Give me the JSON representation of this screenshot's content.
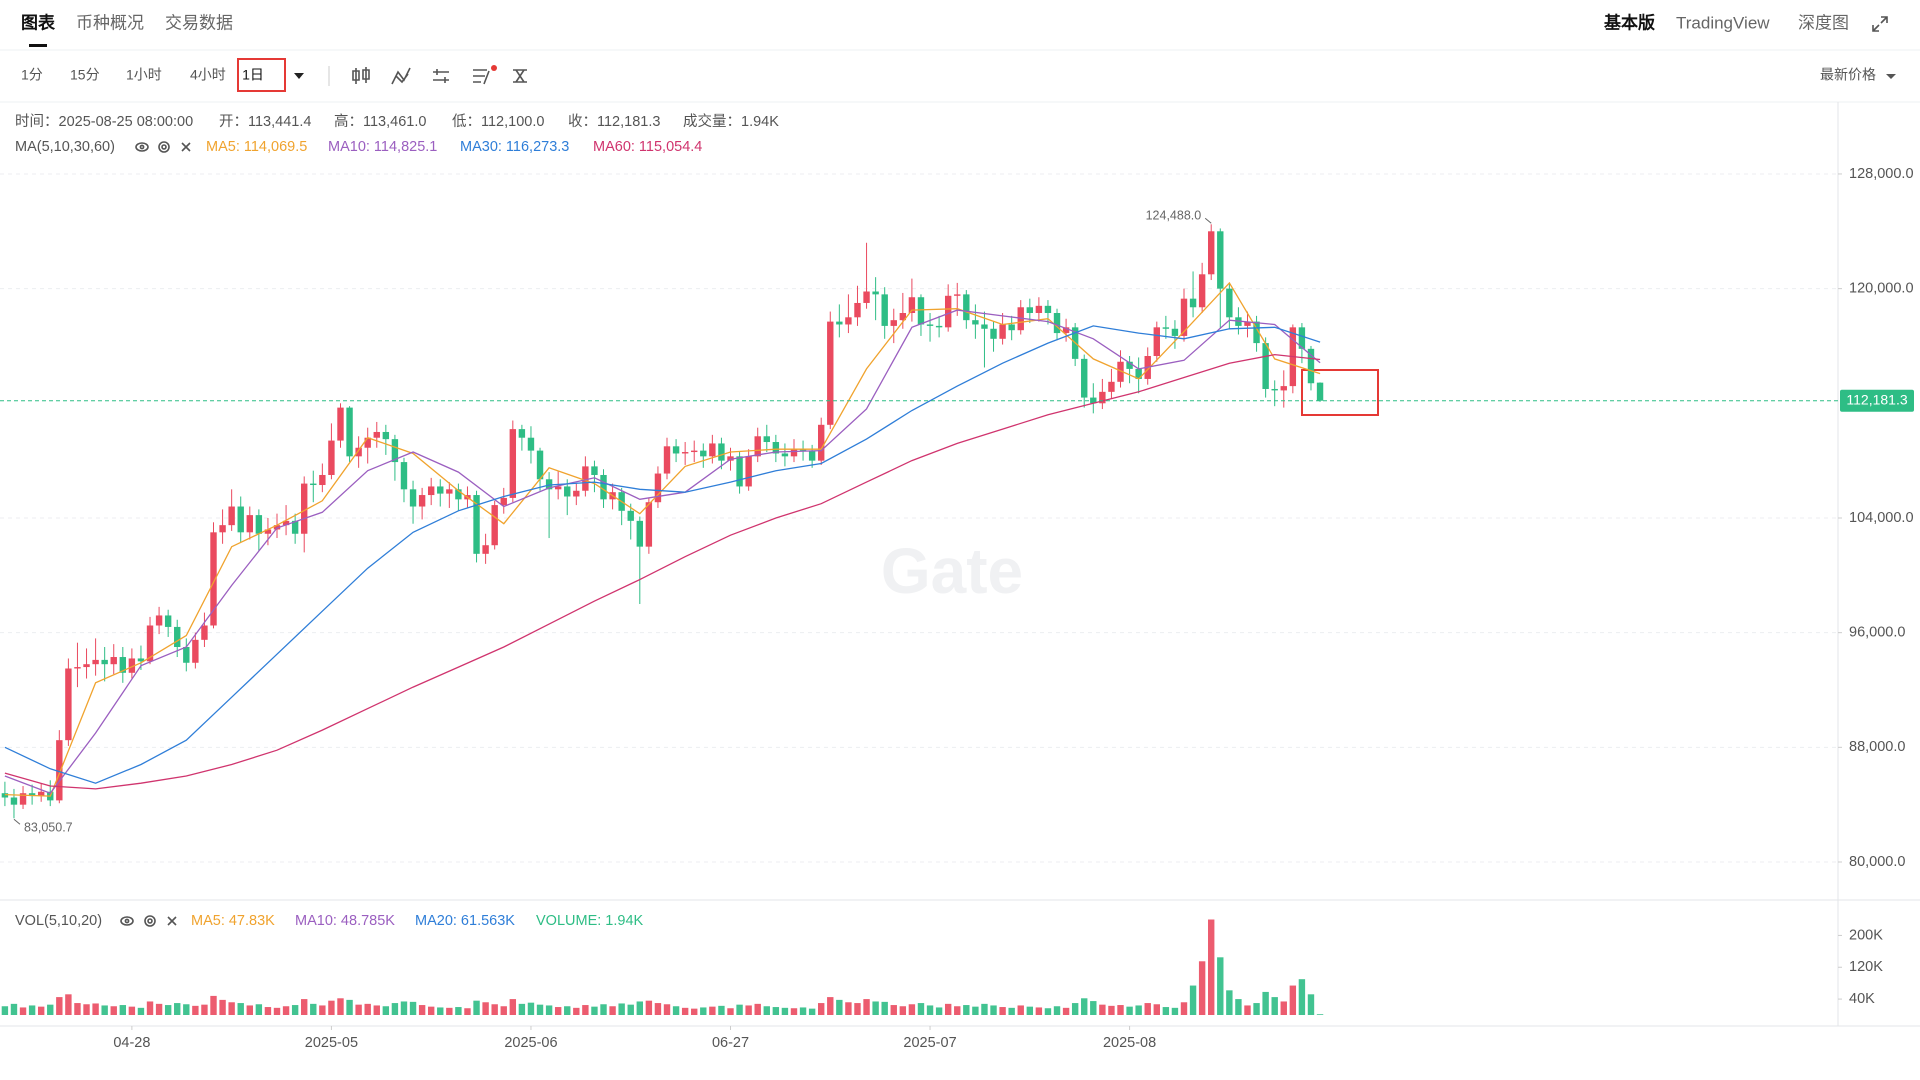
{
  "ui": {
    "tabs": [
      "图表",
      "币种概况",
      "交易数据"
    ],
    "views": [
      "基本版",
      "TradingView",
      "深度图"
    ],
    "intervals": [
      "1分",
      "15分",
      "1小时",
      "4小时",
      "1日"
    ],
    "price_mode": "最新价格"
  },
  "chart_data": {
    "type": "candlestick",
    "info": [
      "时间：2025-08-25 08:00:00",
      "开：113,441.4",
      "高：113,461.0",
      "低：112,100.0",
      "收：112,181.3",
      "成交量：1.94K"
    ],
    "indicator": "MA(5,10,30,60)",
    "up_color": "#ea4a5f",
    "down_color": "#2ebd85",
    "ylim": [
      77350,
      132950
    ],
    "yticks": [
      {
        "value": 80000,
        "label": "80,000.0"
      },
      {
        "value": 88000,
        "label": "88,000.0"
      },
      {
        "value": 96000,
        "label": "96,000.0"
      },
      {
        "value": 104000,
        "label": "104,000.0"
      },
      {
        "value": 120000,
        "label": "120,000.0"
      },
      {
        "value": 128000,
        "label": "128,000.0"
      }
    ],
    "grid": true,
    "xticks": [
      {
        "value": 14,
        "label": "04-28"
      },
      {
        "value": 36,
        "label": "2025-05"
      },
      {
        "value": 58,
        "label": "2025-06"
      },
      {
        "value": 80,
        "label": "06-27"
      },
      {
        "value": 102,
        "label": "2025-07"
      },
      {
        "value": 124,
        "label": "2025-08"
      }
    ],
    "open": [
      84800,
      84500,
      84000,
      84800,
      84600,
      84900,
      84300,
      88500,
      93500,
      93600,
      93800,
      94100,
      93800,
      94300,
      93200,
      94200,
      94000,
      96500,
      97200,
      96400,
      95000,
      93900,
      95500,
      96500,
      103000,
      103500,
      104800,
      103000,
      104200,
      102900,
      103200,
      103500,
      103800,
      102900,
      106400,
      106300,
      107000,
      109400,
      111700,
      108300,
      108900,
      109600,
      110000,
      109500,
      107900,
      106000,
      104800,
      105600,
      106200,
      105700,
      106000,
      105300,
      105600,
      101500,
      102100,
      104900,
      105400,
      110200,
      109600,
      108700,
      106700,
      106000,
      106200,
      105500,
      105900,
      107600,
      107000,
      105300,
      105800,
      104500,
      103800,
      102000,
      105100,
      107100,
      109000,
      108500,
      108600,
      108700,
      108300,
      109200,
      108000,
      108300,
      106200,
      108300,
      109700,
      109300,
      108500,
      108300,
      108800,
      108700,
      108000,
      110500,
      117700,
      117500,
      118000,
      119000,
      119800,
      119600,
      117400,
      117800,
      118300,
      119400,
      117500,
      117400,
      117300,
      119500,
      119600,
      117800,
      117500,
      117200,
      116500,
      117500,
      117100,
      118700,
      118300,
      118800,
      118300,
      116900,
      117300,
      115100,
      112400,
      112000,
      112800,
      113500,
      114900,
      114400,
      113700,
      115300,
      117300,
      117200,
      116700,
      119300,
      118700,
      121000,
      124000,
      120000,
      118000,
      117400,
      117700,
      116200,
      113000,
      112900,
      113200,
      117300,
      115800,
      113441.4
    ],
    "high": [
      85600,
      85100,
      85300,
      85400,
      85500,
      85700,
      89200,
      94200,
      95300,
      94900,
      95600,
      95000,
      95200,
      95000,
      94900,
      95100,
      97100,
      97800,
      97600,
      96900,
      95600,
      96000,
      97400,
      103700,
      104600,
      106000,
      105500,
      104800,
      104600,
      104000,
      104300,
      104900,
      104300,
      106900,
      107300,
      107800,
      110600,
      112000,
      111800,
      109700,
      110300,
      110700,
      110500,
      109800,
      108200,
      106600,
      106100,
      106800,
      106700,
      106500,
      106400,
      106200,
      105900,
      102900,
      105200,
      106100,
      110800,
      110500,
      110400,
      108900,
      107200,
      107300,
      106700,
      106400,
      108300,
      108000,
      107400,
      106400,
      106100,
      105000,
      104100,
      105400,
      107600,
      109600,
      109500,
      109300,
      109400,
      109200,
      109800,
      109600,
      108900,
      108600,
      108800,
      110300,
      110500,
      109800,
      109200,
      109500,
      109400,
      109100,
      111000,
      118400,
      118900,
      119600,
      120200,
      123200,
      120800,
      120100,
      118600,
      119700,
      120700,
      119600,
      118300,
      118100,
      120300,
      120400,
      119900,
      118900,
      118400,
      117700,
      118300,
      118100,
      119200,
      119300,
      119400,
      119200,
      118600,
      117900,
      117600,
      115400,
      113400,
      113700,
      114400,
      115700,
      115300,
      115200,
      115900,
      117700,
      118100,
      117800,
      120000,
      121200,
      121800,
      124488,
      124200,
      120400,
      118700,
      118400,
      118100,
      116600,
      113600,
      114300,
      117500,
      117600,
      116000,
      113461
    ],
    "low": [
      83900,
      83050.7,
      83700,
      84000,
      84200,
      83900,
      84100,
      88100,
      92200,
      92800,
      93000,
      92600,
      93100,
      92500,
      92800,
      93400,
      93800,
      95900,
      95700,
      94300,
      93300,
      93500,
      95000,
      96300,
      102200,
      103100,
      102300,
      102500,
      101700,
      102100,
      102600,
      102800,
      102200,
      101600,
      105100,
      105800,
      106700,
      108900,
      107900,
      107500,
      107800,
      108900,
      108400,
      106600,
      105100,
      103600,
      103900,
      104900,
      104800,
      104700,
      104500,
      104700,
      100900,
      100800,
      101800,
      104300,
      105100,
      108700,
      107800,
      105900,
      102600,
      105300,
      104200,
      104900,
      105500,
      105800,
      104700,
      104600,
      103500,
      102500,
      98000,
      101500,
      104700,
      106700,
      107900,
      107700,
      107900,
      107500,
      107800,
      107400,
      107300,
      105700,
      105900,
      107900,
      108600,
      107900,
      107600,
      107900,
      108000,
      107500,
      107700,
      110200,
      116600,
      116900,
      117400,
      118600,
      117800,
      116500,
      116200,
      117200,
      117700,
      116700,
      116300,
      116600,
      117000,
      118100,
      117200,
      116500,
      114500,
      115600,
      116100,
      116400,
      116800,
      117600,
      117700,
      117500,
      116400,
      116300,
      114600,
      111700,
      111300,
      111600,
      112300,
      113100,
      113400,
      112700,
      113300,
      114900,
      116500,
      115800,
      116300,
      118000,
      118300,
      120600,
      117200,
      117200,
      116800,
      116600,
      115600,
      112400,
      111800,
      111700,
      112700,
      114800,
      112900,
      112100
    ],
    "close": [
      84500,
      84000,
      84800,
      84600,
      84900,
      84300,
      88500,
      93500,
      93600,
      93800,
      94100,
      93800,
      94300,
      93200,
      94200,
      94000,
      96500,
      97200,
      96400,
      95000,
      93900,
      95500,
      96500,
      103000,
      103500,
      104800,
      103000,
      104200,
      102900,
      103200,
      103500,
      103800,
      102900,
      106400,
      106300,
      107000,
      109400,
      111700,
      108300,
      108900,
      109600,
      110000,
      109500,
      107900,
      106000,
      104800,
      105600,
      106200,
      105700,
      106000,
      105300,
      105600,
      101500,
      102100,
      104900,
      105400,
      110200,
      109600,
      108700,
      106700,
      106000,
      106200,
      105500,
      105900,
      107600,
      107000,
      105300,
      105800,
      104500,
      103800,
      102000,
      105100,
      107100,
      109000,
      108500,
      108600,
      108700,
      108300,
      109200,
      108000,
      108300,
      106200,
      108300,
      109700,
      109300,
      108500,
      108300,
      108800,
      108700,
      108000,
      110500,
      117700,
      117500,
      118000,
      119000,
      119800,
      119600,
      117400,
      117800,
      118300,
      119400,
      117500,
      117400,
      117300,
      119500,
      119600,
      117800,
      117500,
      117200,
      116500,
      117500,
      117100,
      118700,
      118300,
      118800,
      118300,
      116900,
      117300,
      115100,
      112400,
      112000,
      112800,
      113500,
      114900,
      114400,
      113700,
      115300,
      117300,
      117200,
      116700,
      119300,
      118700,
      121000,
      124000,
      120000,
      118000,
      117400,
      117700,
      116200,
      113000,
      112900,
      113200,
      117300,
      115800,
      113400,
      112181.3
    ],
    "close_label": "112,181.3",
    "annotations": [
      {
        "index": 133,
        "value": 124488,
        "label": "124,488.0"
      },
      {
        "index": 1,
        "value": 83050.7,
        "label": "83,050.7"
      }
    ],
    "ma": {
      "x": [
        0,
        5,
        10,
        15,
        20,
        25,
        30,
        35,
        40,
        45,
        50,
        55,
        60,
        65,
        70,
        75,
        80,
        85,
        90,
        95,
        100,
        105,
        110,
        115,
        120,
        125,
        130,
        135,
        140,
        145
      ],
      "series": [
        {
          "label": "MA5: 114,069.5",
          "color": "#f0a32e",
          "values": [
            84700,
            84600,
            92500,
            93900,
            95800,
            102000,
            103500,
            105200,
            109600,
            108500,
            105900,
            103600,
            107500,
            106400,
            104300,
            107600,
            108600,
            108800,
            108800,
            114400,
            118500,
            118600,
            117500,
            117900,
            115100,
            113700,
            117000,
            120400,
            115100,
            114069.5
          ]
        },
        {
          "label": "MA10: 114,825.1",
          "color": "#9b5fc0",
          "values": [
            86000,
            84800,
            89000,
            93700,
            95000,
            99300,
            103300,
            104400,
            107300,
            108600,
            107200,
            104800,
            106100,
            106800,
            105300,
            105800,
            108100,
            108600,
            108700,
            111600,
            117300,
            118500,
            118100,
            117700,
            116500,
            114400,
            115000,
            117800,
            117500,
            114825.1
          ]
        },
        {
          "label": "MA30: 116,273.3",
          "color": "#2f7ed8",
          "values": [
            88000,
            86500,
            85500,
            86800,
            88500,
            91500,
            94500,
            97500,
            100500,
            103000,
            104500,
            105500,
            106300,
            106500,
            106000,
            105800,
            106500,
            107300,
            107800,
            109500,
            111500,
            113200,
            114800,
            116200,
            117400,
            116900,
            116500,
            117200,
            117300,
            116273.3
          ]
        },
        {
          "label": "MA60: 115,054.4",
          "color": "#d0346e",
          "values": [
            86200,
            85300,
            85100,
            85500,
            86000,
            86800,
            87800,
            89200,
            90700,
            92200,
            93600,
            95000,
            96600,
            98200,
            99700,
            101300,
            102800,
            104000,
            105000,
            106500,
            108000,
            109200,
            110200,
            111200,
            112000,
            112800,
            113800,
            114800,
            115400,
            115054.4
          ]
        }
      ]
    },
    "volume": {
      "indicator": "VOL(5,10,20)",
      "legend": [
        {
          "label": "MA5: 47.83K",
          "color": "#f0a32e"
        },
        {
          "label": "MA10: 48.785K",
          "color": "#9b5fc0"
        },
        {
          "label": "MA20: 61.563K",
          "color": "#2f7ed8"
        },
        {
          "label": "VOLUME: 1.94K",
          "color": "#2ebd85"
        }
      ],
      "ylim": [
        0,
        284000
      ],
      "yticks": [
        {
          "value": 40000,
          "label": "40K"
        },
        {
          "value": 120000,
          "label": "120K"
        },
        {
          "value": 200000,
          "label": "200K"
        }
      ],
      "values": [
        22000,
        28000,
        19000,
        24000,
        21000,
        26000,
        45000,
        52000,
        30000,
        27000,
        29000,
        24000,
        22000,
        25000,
        21000,
        18000,
        34000,
        28000,
        25000,
        30000,
        27000,
        23000,
        26000,
        48000,
        38000,
        32000,
        30000,
        24000,
        27000,
        20000,
        18000,
        22000,
        25000,
        40000,
        28000,
        24000,
        36000,
        42000,
        38000,
        26000,
        28000,
        24000,
        22000,
        30000,
        34000,
        33000,
        25000,
        21000,
        19000,
        18000,
        20000,
        17000,
        36000,
        32000,
        27000,
        22000,
        40000,
        28000,
        31000,
        26000,
        24000,
        20000,
        22000,
        18000,
        25000,
        21000,
        27000,
        22000,
        29000,
        26000,
        34000,
        36000,
        30000,
        27000,
        22000,
        18000,
        16000,
        19000,
        21000,
        23000,
        17000,
        26000,
        24000,
        28000,
        22000,
        20000,
        18000,
        17000,
        19000,
        16000,
        30000,
        45000,
        38000,
        32000,
        30000,
        40000,
        34000,
        33000,
        25000,
        22000,
        27000,
        30000,
        24000,
        19000,
        28000,
        22000,
        25000,
        21000,
        28000,
        24000,
        20000,
        18000,
        24000,
        21000,
        19000,
        17000,
        22000,
        18000,
        30000,
        42000,
        35000,
        26000,
        23000,
        25000,
        21000,
        24000,
        30000,
        27000,
        20000,
        18000,
        32000,
        74000,
        135000,
        240000,
        145000,
        62000,
        40000,
        24000,
        30000,
        58000,
        45000,
        34000,
        74000,
        90000,
        52000,
        1940
      ]
    },
    "watermark": "Gate"
  }
}
